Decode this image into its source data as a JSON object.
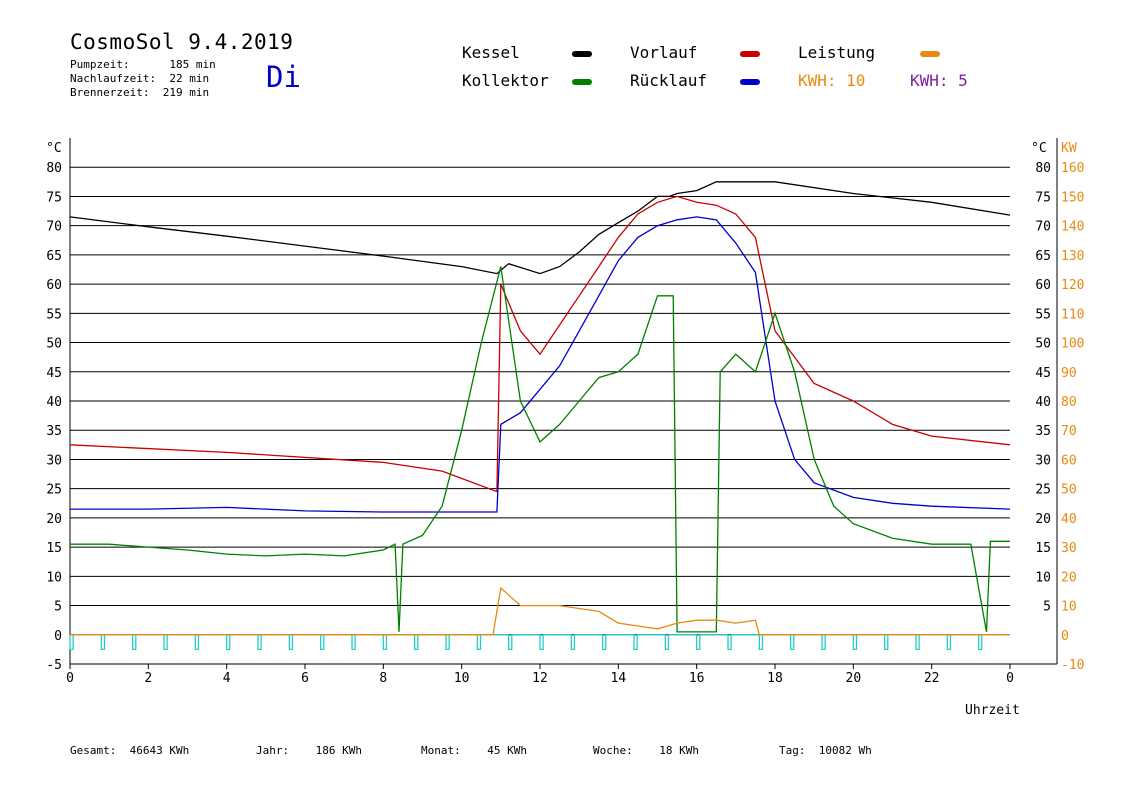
{
  "header": {
    "title": "CosmoSol 9.4.2019",
    "stats": [
      {
        "label": "Pumpzeit:",
        "value": "185 min"
      },
      {
        "label": "Nachlaufzeit:",
        "value": "22 min"
      },
      {
        "label": "Brennerzeit:",
        "value": "219 min"
      }
    ],
    "day": "Di"
  },
  "legend": {
    "kessel": "Kessel",
    "kollektor": "Kollektor",
    "vorlauf": "Vorlauf",
    "ruecklauf": "Rücklauf",
    "leistung": "Leistung",
    "kwh_orange": "KWH: 10",
    "kwh_purple": "KWH: 5"
  },
  "footer": {
    "gesamt_label": "Gesamt:",
    "gesamt_value": "46643 KWh",
    "jahr_label": "Jahr:",
    "jahr_value": "186 KWh",
    "monat_label": "Monat:",
    "monat_value": "45 KWh",
    "woche_label": "Woche:",
    "woche_value": "18 KWh",
    "tag_label": "Tag:",
    "tag_value": "10082 Wh"
  },
  "colors": {
    "kessel": "#000000",
    "kollektor": "#008000",
    "vorlauf": "#c80000",
    "ruecklauf": "#0000c8",
    "leistung": "#e88a10",
    "kwh2": "#8020a0",
    "pump": "#20d0d0"
  },
  "chart_data": {
    "type": "line",
    "xlabel": "Uhrzeit",
    "ylabel_left": "°C",
    "ylabel_right_1": "°C",
    "ylabel_right_2": "KW",
    "xlim": [
      0,
      24
    ],
    "ylim": [
      -5,
      85
    ],
    "x_ticks": [
      "0",
      "2",
      "4",
      "6",
      "8",
      "10",
      "12",
      "14",
      "16",
      "18",
      "20",
      "22",
      "0"
    ],
    "y_ticks": [
      -5,
      0,
      5,
      10,
      15,
      20,
      25,
      30,
      35,
      40,
      45,
      50,
      55,
      60,
      65,
      70,
      75,
      80
    ],
    "y_ticks_right": [
      "5",
      "10",
      "15",
      "20",
      "25",
      "30",
      "35",
      "40",
      "45",
      "50",
      "55",
      "60",
      "65",
      "70",
      "75",
      "80"
    ],
    "y_ticks_kw": [
      "-10",
      "0",
      "10",
      "20",
      "30",
      "40",
      "50",
      "60",
      "70",
      "80",
      "90",
      "100",
      "110",
      "120",
      "130",
      "140",
      "150",
      "160"
    ],
    "grid": true,
    "series": [
      {
        "name": "Kessel",
        "x": [
          0,
          2,
          4,
          6,
          8,
          10,
          10.9,
          11.2,
          12.0,
          12.5,
          13.0,
          13.5,
          14.0,
          14.5,
          15.0,
          15.3,
          15.5,
          16.0,
          16.5,
          17.0,
          18.0,
          20.0,
          22.0,
          24.0
        ],
        "y": [
          71.5,
          69.8,
          68.2,
          66.5,
          64.8,
          63.0,
          61.8,
          63.5,
          61.8,
          63.0,
          65.5,
          68.5,
          70.5,
          72.5,
          75.0,
          75.0,
          75.5,
          76.0,
          77.5,
          77.5,
          77.5,
          75.5,
          74.0,
          71.8
        ]
      },
      {
        "name": "Vorlauf",
        "x": [
          0,
          4,
          8,
          9.5,
          10.9,
          11.0,
          11.5,
          12.0,
          12.5,
          13.0,
          13.5,
          14.0,
          14.5,
          15.0,
          15.5,
          16.0,
          16.5,
          17.0,
          17.5,
          18.0,
          19.0,
          20.0,
          21.0,
          22.0,
          24.0
        ],
        "y": [
          32.5,
          31.2,
          29.5,
          28.0,
          24.5,
          60.0,
          52.0,
          48.0,
          53.0,
          58.0,
          63.0,
          68.0,
          72.0,
          74.0,
          75.0,
          74.0,
          73.5,
          72.0,
          68.0,
          52.0,
          43.0,
          40.0,
          36.0,
          34.0,
          32.5
        ]
      },
      {
        "name": "Rücklauf",
        "x": [
          0,
          2,
          4,
          6,
          8,
          10,
          10.9,
          11.0,
          11.5,
          12.0,
          12.5,
          13.0,
          13.5,
          14.0,
          14.5,
          15.0,
          15.5,
          16.0,
          16.5,
          17.0,
          17.5,
          18.0,
          18.5,
          19.0,
          20.0,
          21.0,
          22.0,
          24.0
        ],
        "y": [
          21.5,
          21.5,
          21.8,
          21.2,
          21.0,
          21.0,
          21.0,
          36.0,
          38.0,
          42.0,
          46.0,
          52.0,
          58.0,
          64.0,
          68.0,
          70.0,
          71.0,
          71.5,
          71.0,
          67.0,
          62.0,
          40.0,
          30.0,
          26.0,
          23.5,
          22.5,
          22.0,
          21.5
        ]
      },
      {
        "name": "Kollektor",
        "x": [
          0,
          1,
          2,
          3,
          4,
          5,
          6,
          7,
          8,
          8.3,
          8.4,
          8.5,
          9.0,
          9.5,
          10.0,
          10.5,
          11.0,
          11.5,
          12.0,
          12.5,
          13.0,
          13.5,
          14.0,
          14.5,
          15.0,
          15.4,
          15.5,
          16.0,
          16.5,
          16.6,
          17.0,
          17.5,
          18.0,
          18.5,
          19.0,
          19.5,
          20.0,
          21.0,
          22.0,
          23.0,
          23.4,
          23.5,
          24.0
        ],
        "y": [
          15.5,
          15.5,
          15.0,
          14.5,
          13.8,
          13.5,
          13.8,
          13.5,
          14.5,
          15.5,
          0.5,
          15.5,
          17.0,
          22.0,
          35.0,
          50.0,
          63.0,
          40.0,
          33.0,
          36.0,
          40.0,
          44.0,
          45.0,
          48.0,
          58.0,
          58.0,
          0.5,
          0.5,
          0.5,
          45.0,
          48.0,
          45.0,
          55.0,
          45.0,
          30.0,
          22.0,
          19.0,
          16.5,
          15.5,
          15.5,
          0.5,
          16.0,
          16.0
        ]
      },
      {
        "name": "Leistung",
        "x": [
          0,
          10.8,
          11.0,
          11.5,
          12.0,
          12.5,
          13.0,
          13.5,
          14.0,
          14.5,
          15.0,
          15.5,
          16.0,
          16.5,
          17.0,
          17.5,
          17.6,
          24.0
        ],
        "y": [
          0,
          0,
          8.0,
          5.0,
          5.0,
          5.0,
          4.5,
          4.0,
          2.0,
          1.5,
          1.0,
          2.0,
          2.5,
          2.5,
          2.0,
          2.5,
          0,
          0
        ]
      }
    ]
  }
}
